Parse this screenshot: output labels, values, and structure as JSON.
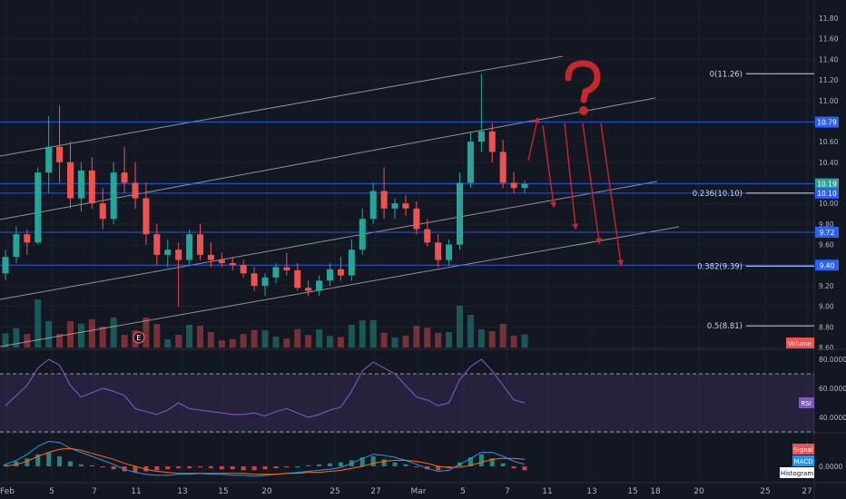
{
  "colors": {
    "background": "#131722",
    "grid": "#1e222d",
    "up": "#26a69a",
    "down": "#ef5350",
    "channel": "#c7c7c7",
    "hline": "#2962ff",
    "fib": "#d1d4dc",
    "rsi": "#7e57c2",
    "macd": "#2196f3",
    "signal": "#ff6d00",
    "annotation": "#c62828",
    "text": "#b2b5be"
  },
  "chart_data": [
    {
      "type": "candlestick",
      "x_ticks": [
        "Feb",
        "5",
        "7",
        "11",
        "13",
        "15",
        "20",
        "25",
        "27",
        "Mar",
        "5",
        "7",
        "11",
        "13",
        "15",
        "18",
        "20",
        "25",
        "27"
      ],
      "ylim": [
        8.6,
        11.8
      ],
      "y_ticks": [
        "11.80",
        "11.60",
        "11.40",
        "11.20",
        "11.00",
        "10.80",
        "10.60",
        "10.40",
        "10.20",
        "10.00",
        "9.80",
        "9.60",
        "9.40",
        "9.20",
        "9.00",
        "8.80",
        "8.60"
      ],
      "price_labels": [
        "10.79",
        "10.19",
        "10.10",
        "9.72",
        "9.40"
      ],
      "fib_levels": [
        {
          "label": "0(11.26)",
          "value": 11.26
        },
        {
          "label": "0.236(10.10)",
          "value": 10.1
        },
        {
          "label": "0.382(9.39)",
          "value": 9.39
        },
        {
          "label": "0.5(8.81)",
          "value": 8.81
        }
      ],
      "horizontal_lines": [
        10.79,
        10.19,
        10.1,
        9.72,
        9.4
      ],
      "candles_ohlc": [
        [
          9.32,
          9.55,
          9.25,
          9.48
        ],
        [
          9.48,
          9.78,
          9.42,
          9.7
        ],
        [
          9.7,
          9.75,
          9.5,
          9.62
        ],
        [
          9.62,
          10.35,
          9.6,
          10.3
        ],
        [
          10.3,
          10.85,
          10.1,
          10.55
        ],
        [
          10.55,
          10.95,
          10.2,
          10.4
        ],
        [
          10.4,
          10.6,
          9.95,
          10.05
        ],
        [
          10.05,
          10.4,
          9.92,
          10.32
        ],
        [
          10.32,
          10.45,
          9.95,
          10.0
        ],
        [
          10.0,
          10.15,
          9.75,
          9.85
        ],
        [
          9.85,
          10.4,
          9.8,
          10.3
        ],
        [
          10.3,
          10.55,
          10.1,
          10.2
        ],
        [
          10.2,
          10.4,
          9.95,
          10.05
        ],
        [
          10.05,
          10.2,
          9.6,
          9.7
        ],
        [
          9.7,
          9.8,
          9.4,
          9.5
        ],
        [
          9.5,
          9.65,
          9.38,
          9.55
        ],
        [
          9.55,
          9.62,
          9.0,
          9.45
        ],
        [
          9.45,
          9.75,
          9.4,
          9.7
        ],
        [
          9.7,
          9.8,
          9.45,
          9.5
        ],
        [
          9.5,
          9.62,
          9.38,
          9.45
        ],
        [
          9.45,
          9.52,
          9.38,
          9.42
        ],
        [
          9.42,
          9.48,
          9.35,
          9.4
        ],
        [
          9.4,
          9.45,
          9.28,
          9.32
        ],
        [
          9.32,
          9.38,
          9.15,
          9.2
        ],
        [
          9.2,
          9.32,
          9.1,
          9.28
        ],
        [
          9.28,
          9.42,
          9.22,
          9.38
        ],
        [
          9.38,
          9.52,
          9.3,
          9.35
        ],
        [
          9.35,
          9.42,
          9.15,
          9.18
        ],
        [
          9.18,
          9.25,
          9.1,
          9.15
        ],
        [
          9.15,
          9.3,
          9.1,
          9.25
        ],
        [
          9.25,
          9.42,
          9.2,
          9.36
        ],
        [
          9.36,
          9.48,
          9.25,
          9.3
        ],
        [
          9.3,
          9.65,
          9.25,
          9.55
        ],
        [
          9.55,
          9.95,
          9.5,
          9.85
        ],
        [
          9.85,
          10.2,
          9.8,
          10.12
        ],
        [
          10.12,
          10.35,
          9.85,
          9.95
        ],
        [
          9.95,
          10.05,
          9.85,
          10.0
        ],
        [
          10.0,
          10.08,
          9.88,
          9.95
        ],
        [
          9.95,
          10.02,
          9.7,
          9.75
        ],
        [
          9.75,
          9.85,
          9.58,
          9.62
        ],
        [
          9.62,
          9.7,
          9.38,
          9.45
        ],
        [
          9.45,
          9.65,
          9.4,
          9.6
        ],
        [
          9.6,
          10.3,
          9.55,
          10.2
        ],
        [
          10.2,
          10.7,
          10.15,
          10.6
        ],
        [
          10.6,
          11.26,
          10.5,
          10.7
        ],
        [
          10.7,
          10.78,
          10.4,
          10.5
        ],
        [
          10.5,
          10.62,
          10.15,
          10.2
        ],
        [
          10.2,
          10.3,
          10.1,
          10.15
        ],
        [
          10.15,
          10.22,
          10.1,
          10.19
        ]
      ],
      "volume_labels": [
        "Volume"
      ],
      "earnings_marker": "E"
    },
    {
      "type": "line",
      "name": "RSI",
      "ylim": [
        30,
        85
      ],
      "y_ticks": [
        "80.0000",
        "60.0000",
        "40.0000"
      ],
      "bands": [
        70,
        30
      ],
      "values": [
        48,
        55,
        62,
        74,
        80,
        76,
        62,
        54,
        57,
        60,
        58,
        55,
        46,
        44,
        42,
        45,
        50,
        46,
        45,
        44,
        43,
        42,
        42,
        43,
        41,
        44,
        46,
        43,
        40,
        42,
        45,
        47,
        58,
        72,
        78,
        74,
        70,
        62,
        54,
        52,
        48,
        50,
        66,
        75,
        80,
        72,
        62,
        52,
        50
      ]
    },
    {
      "type": "bar",
      "name": "MACD",
      "legend": [
        "Signal",
        "MACD",
        "Histogram"
      ],
      "y_ticks": [
        "0.0000"
      ],
      "histogram": [
        0.02,
        0.05,
        0.08,
        0.12,
        0.14,
        0.1,
        0.05,
        0.02,
        0.01,
        -0.01,
        -0.03,
        -0.05,
        -0.06,
        -0.05,
        -0.04,
        -0.03,
        -0.02,
        -0.02,
        -0.01,
        -0.02,
        -0.03,
        -0.03,
        -0.04,
        -0.04,
        -0.03,
        -0.02,
        -0.01,
        0.0,
        0.01,
        0.02,
        0.03,
        0.04,
        0.06,
        0.09,
        0.1,
        0.07,
        0.04,
        0.02,
        -0.01,
        -0.03,
        -0.04,
        -0.02,
        0.04,
        0.09,
        0.12,
        0.08,
        0.03,
        -0.02,
        -0.04
      ],
      "macd": [
        0.02,
        0.06,
        0.12,
        0.2,
        0.25,
        0.24,
        0.18,
        0.14,
        0.1,
        0.06,
        0.02,
        -0.03,
        -0.06,
        -0.08,
        -0.09,
        -0.09,
        -0.08,
        -0.08,
        -0.07,
        -0.08,
        -0.08,
        -0.09,
        -0.09,
        -0.1,
        -0.09,
        -0.08,
        -0.07,
        -0.06,
        -0.05,
        -0.04,
        -0.03,
        -0.01,
        0.03,
        0.08,
        0.12,
        0.11,
        0.09,
        0.06,
        0.02,
        -0.02,
        -0.05,
        -0.04,
        0.02,
        0.08,
        0.14,
        0.14,
        0.1,
        0.05,
        0.02
      ],
      "signal": [
        0.0,
        0.02,
        0.05,
        0.1,
        0.14,
        0.17,
        0.18,
        0.16,
        0.13,
        0.1,
        0.07,
        0.03,
        0.0,
        -0.03,
        -0.05,
        -0.06,
        -0.07,
        -0.07,
        -0.07,
        -0.07,
        -0.07,
        -0.07,
        -0.07,
        -0.08,
        -0.08,
        -0.08,
        -0.07,
        -0.07,
        -0.06,
        -0.06,
        -0.05,
        -0.04,
        -0.02,
        0.0,
        0.03,
        0.05,
        0.06,
        0.06,
        0.05,
        0.03,
        0.0,
        -0.01,
        -0.01,
        0.01,
        0.04,
        0.07,
        0.08,
        0.08,
        0.07
      ]
    }
  ]
}
